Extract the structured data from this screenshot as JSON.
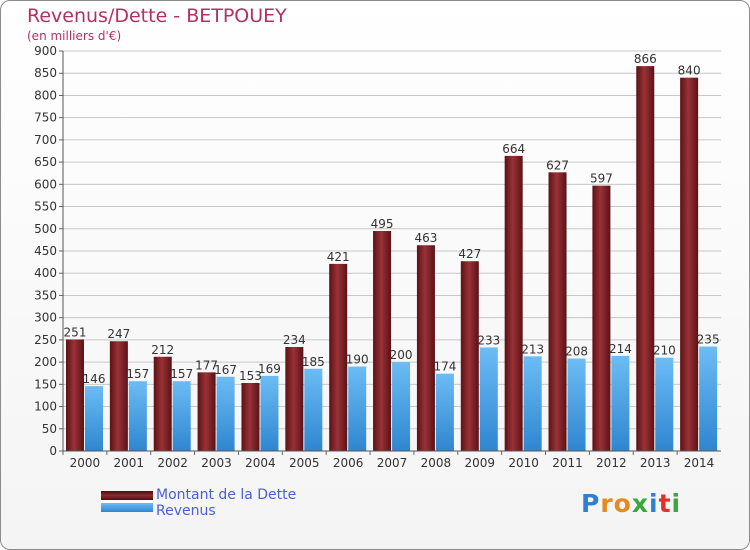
{
  "header": {
    "title": "Revenus/Dette - BETPOUEY",
    "subtitle": "(en milliers d'€)"
  },
  "legend": {
    "items": [
      {
        "label": "Montant de la Dette",
        "color": "#7a1f24"
      },
      {
        "label": "Revenus",
        "color": "#3d9ae0"
      }
    ]
  },
  "logo": {
    "text": "Proxiti",
    "letter_colors": [
      "#2f7fd3",
      "#e48a1e",
      "#e48a1e",
      "#3aa83a",
      "#2f7fd3",
      "#e2312b",
      "#3aa83a"
    ]
  },
  "chart_data": {
    "type": "bar",
    "categories": [
      "2000",
      "2001",
      "2002",
      "2003",
      "2004",
      "2005",
      "2006",
      "2007",
      "2008",
      "2009",
      "2010",
      "2011",
      "2012",
      "2013",
      "2014"
    ],
    "series": [
      {
        "name": "Montant de la Dette",
        "values": [
          251,
          247,
          212,
          177,
          153,
          234,
          421,
          495,
          463,
          427,
          664,
          627,
          597,
          866,
          840
        ],
        "color": "#7a1f24"
      },
      {
        "name": "Revenus",
        "values": [
          146,
          157,
          157,
          167,
          169,
          185,
          190,
          200,
          174,
          233,
          213,
          208,
          214,
          210,
          235
        ],
        "color": "#3d9ae0"
      }
    ],
    "ylim": [
      0,
      900
    ],
    "yticks": [
      0,
      50,
      100,
      150,
      200,
      250,
      300,
      350,
      400,
      450,
      500,
      550,
      600,
      650,
      700,
      750,
      800,
      850,
      900
    ],
    "grid": true,
    "legend_position": "bottom-left"
  }
}
